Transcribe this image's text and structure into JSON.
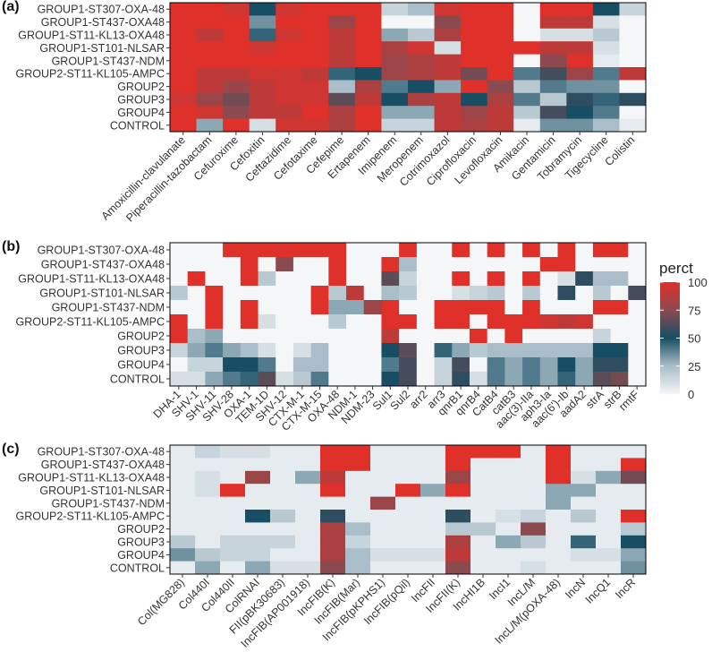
{
  "chart_data": [
    {
      "panel_label": "(a)",
      "type": "heatmap",
      "rows": [
        "GROUP1-ST307-OXA-48",
        "GROUP1-ST437-OXA48",
        "GROUP1-ST11-KL13-OXA48",
        "GROUP1-ST101-NLSAR",
        "GROUP1-ST437-NDM",
        "GROUP2-ST11-KL105-AMPC",
        "GROUP2",
        "GROUP3",
        "GROUP4",
        "CONTROL"
      ],
      "columns": [
        "Amoxicillin-clavulanate",
        "Piperacillin-tazobactam",
        "Cefuroxime",
        "Cefoxitin",
        "Ceftazidime",
        "Cefotaxime",
        "Cefepime",
        "Ertapenem",
        "Imipenem",
        "Meropenem",
        "Cotrimoxazol",
        "Ciprofloxacin",
        "Levofloxacin",
        "Amikacin",
        "Gentamicin",
        "Tobramycin",
        "Tigecycline",
        "Colistin"
      ],
      "values": [
        [
          100,
          100,
          95,
          50,
          95,
          100,
          100,
          100,
          15,
          25,
          95,
          100,
          100,
          0,
          100,
          100,
          50,
          15
        ],
        [
          100,
          100,
          100,
          35,
          100,
          100,
          80,
          100,
          0,
          0,
          75,
          100,
          100,
          0,
          90,
          90,
          10,
          0
        ],
        [
          100,
          90,
          100,
          45,
          95,
          100,
          90,
          100,
          30,
          20,
          85,
          100,
          100,
          0,
          10,
          10,
          20,
          0
        ],
        [
          100,
          100,
          100,
          95,
          100,
          100,
          90,
          100,
          85,
          95,
          10,
          100,
          100,
          100,
          90,
          90,
          10,
          0
        ],
        [
          100,
          100,
          100,
          100,
          100,
          100,
          90,
          100,
          80,
          85,
          90,
          100,
          100,
          0,
          75,
          100,
          5,
          0
        ],
        [
          100,
          90,
          90,
          95,
          95,
          90,
          45,
          50,
          80,
          85,
          90,
          70,
          100,
          40,
          60,
          80,
          40,
          90
        ],
        [
          100,
          90,
          80,
          90,
          95,
          95,
          25,
          85,
          40,
          50,
          30,
          100,
          75,
          20,
          40,
          35,
          35,
          0
        ],
        [
          95,
          80,
          70,
          90,
          95,
          95,
          65,
          90,
          50,
          85,
          90,
          50,
          85,
          40,
          20,
          55,
          45,
          55
        ],
        [
          100,
          95,
          75,
          90,
          90,
          100,
          85,
          100,
          30,
          30,
          90,
          80,
          90,
          20,
          60,
          50,
          40,
          0
        ],
        [
          100,
          30,
          100,
          10,
          95,
          95,
          85,
          100,
          15,
          15,
          90,
          85,
          90,
          5,
          35,
          35,
          25,
          5
        ]
      ]
    },
    {
      "panel_label": "(b)",
      "type": "heatmap",
      "rows": [
        "GROUP1-ST307-OXA-48",
        "GROUP1-ST437-OXA48",
        "GROUP1-ST11-KL13-OXA48",
        "GROUP1-ST101-NLSAR",
        "GROUP1-ST437-NDM",
        "GROUP2-ST11-KL105-AMPC",
        "GROUP2",
        "GROUP3",
        "GROUP4",
        "CONTROL"
      ],
      "columns": [
        "DHA-1",
        "SHV-1",
        "SHV-11",
        "SHV-28",
        "OXA-1",
        "TEM-1D",
        "SHV-12",
        "CTX-M-1",
        "CTX-M-15",
        "OXA-48",
        "NDM-1",
        "NDM-23",
        "Sul1",
        "Sul2",
        "arr2",
        "arr3",
        "qnrB1",
        "qnrB4",
        "CatB4",
        "catB3",
        "aac(3)-IIa",
        "aph3-Ia",
        "aac(6')-Ib",
        "aadA2",
        "strA",
        "strB",
        "rmtF"
      ],
      "values": [
        [
          0,
          0,
          0,
          100,
          100,
          100,
          100,
          100,
          100,
          100,
          0,
          0,
          0,
          100,
          0,
          0,
          100,
          0,
          100,
          0,
          100,
          0,
          100,
          0,
          100,
          100,
          0
        ],
        [
          0,
          0,
          0,
          0,
          100,
          0,
          75,
          0,
          0,
          100,
          0,
          0,
          100,
          25,
          0,
          0,
          0,
          0,
          0,
          0,
          0,
          100,
          100,
          0,
          0,
          0,
          0
        ],
        [
          0,
          100,
          0,
          0,
          100,
          20,
          0,
          0,
          0,
          100,
          0,
          0,
          65,
          15,
          0,
          0,
          100,
          0,
          100,
          0,
          100,
          0,
          10,
          55,
          25,
          25,
          0
        ],
        [
          20,
          0,
          100,
          0,
          0,
          0,
          0,
          0,
          100,
          20,
          90,
          0,
          25,
          20,
          0,
          0,
          10,
          15,
          20,
          0,
          20,
          0,
          55,
          0,
          20,
          0,
          60
        ],
        [
          0,
          0,
          100,
          0,
          100,
          0,
          0,
          0,
          100,
          30,
          30,
          80,
          100,
          0,
          0,
          100,
          100,
          100,
          100,
          0,
          100,
          0,
          0,
          0,
          100,
          100,
          0
        ],
        [
          100,
          0,
          100,
          0,
          100,
          10,
          0,
          0,
          0,
          20,
          0,
          0,
          100,
          100,
          0,
          100,
          100,
          0,
          100,
          100,
          100,
          95,
          90,
          95,
          0,
          0,
          0
        ],
        [
          100,
          25,
          30,
          0,
          0,
          0,
          0,
          0,
          0,
          0,
          0,
          0,
          90,
          0,
          0,
          0,
          0,
          100,
          0,
          100,
          0,
          0,
          0,
          0,
          15,
          0,
          0
        ],
        [
          15,
          30,
          40,
          30,
          25,
          10,
          0,
          10,
          25,
          0,
          0,
          0,
          50,
          65,
          0,
          45,
          30,
          20,
          25,
          25,
          25,
          25,
          25,
          25,
          50,
          50,
          0
        ],
        [
          0,
          15,
          15,
          50,
          50,
          40,
          0,
          25,
          25,
          0,
          0,
          0,
          40,
          60,
          0,
          15,
          60,
          0,
          40,
          30,
          40,
          30,
          50,
          30,
          55,
          55,
          0
        ],
        [
          10,
          10,
          30,
          40,
          45,
          65,
          10,
          20,
          40,
          0,
          0,
          0,
          50,
          60,
          0,
          15,
          55,
          10,
          40,
          30,
          40,
          30,
          45,
          30,
          65,
          70,
          0
        ]
      ]
    },
    {
      "panel_label": "(c)",
      "type": "heatmap",
      "rows": [
        "GROUP1-ST307-OXA-48",
        "GROUP1-ST437-OXA48",
        "GROUP1-ST11-KL13-OXA48",
        "GROUP1-ST101-NLSAR",
        "GROUP1-ST437-NDM",
        "GROUP2-ST11-KL105-AMPC",
        "GROUP2",
        "GROUP3",
        "GROUP4",
        "CONTROL"
      ],
      "columns": [
        "Col(MG828)",
        "Col440I",
        "Col440II",
        "ColRNAI",
        "FII(pBK30683)",
        "IncFIB(AP001918)",
        "IncFIB(K)",
        "IncFIB(Mar)",
        "IncFIB(pKPHS1)",
        "IncFIB(pQil)",
        "IncFII",
        "IncFII(K)",
        "IncHI1B",
        "IncI1",
        "IncL/M",
        "IncL/M(pOXA-48)",
        "IncN",
        "IncQ1",
        "IncR"
      ],
      "values": [
        [
          5,
          15,
          10,
          10,
          5,
          5,
          100,
          100,
          5,
          5,
          5,
          100,
          100,
          100,
          5,
          100,
          5,
          5,
          5
        ],
        [
          5,
          5,
          5,
          5,
          5,
          5,
          100,
          100,
          5,
          5,
          5,
          100,
          5,
          5,
          5,
          100,
          5,
          5,
          100
        ],
        [
          5,
          10,
          5,
          80,
          5,
          30,
          90,
          5,
          5,
          5,
          5,
          80,
          5,
          5,
          5,
          100,
          10,
          30,
          70
        ],
        [
          5,
          10,
          100,
          5,
          5,
          5,
          100,
          5,
          5,
          100,
          30,
          100,
          5,
          5,
          5,
          30,
          30,
          5,
          5
        ],
        [
          5,
          5,
          5,
          5,
          5,
          5,
          5,
          5,
          80,
          5,
          5,
          5,
          5,
          5,
          5,
          30,
          5,
          5,
          5
        ],
        [
          5,
          5,
          5,
          50,
          20,
          5,
          55,
          5,
          5,
          5,
          5,
          55,
          5,
          10,
          15,
          5,
          20,
          5,
          100
        ],
        [
          5,
          5,
          5,
          5,
          5,
          5,
          85,
          25,
          5,
          5,
          5,
          20,
          20,
          5,
          75,
          5,
          5,
          5,
          20
        ],
        [
          20,
          5,
          15,
          15,
          15,
          5,
          85,
          15,
          5,
          5,
          5,
          85,
          5,
          30,
          20,
          5,
          45,
          5,
          50
        ],
        [
          35,
          20,
          15,
          15,
          5,
          5,
          85,
          25,
          10,
          10,
          10,
          90,
          5,
          5,
          5,
          5,
          10,
          10,
          30
        ],
        [
          5,
          30,
          5,
          30,
          10,
          10,
          75,
          25,
          5,
          5,
          5,
          75,
          5,
          5,
          10,
          5,
          5,
          5,
          35
        ]
      ]
    }
  ],
  "legend": {
    "title": "perct",
    "ticks": [
      100,
      75,
      50,
      25,
      0
    ]
  },
  "colors": {
    "scale": [
      {
        "v": 0,
        "c": "#f4f6f7"
      },
      {
        "v": 25,
        "c": "#a9bec8"
      },
      {
        "v": 50,
        "c": "#174e64"
      },
      {
        "v": 75,
        "c": "#8a4a4f"
      },
      {
        "v": 100,
        "c": "#e0302a"
      }
    ],
    "border": "#000000"
  }
}
